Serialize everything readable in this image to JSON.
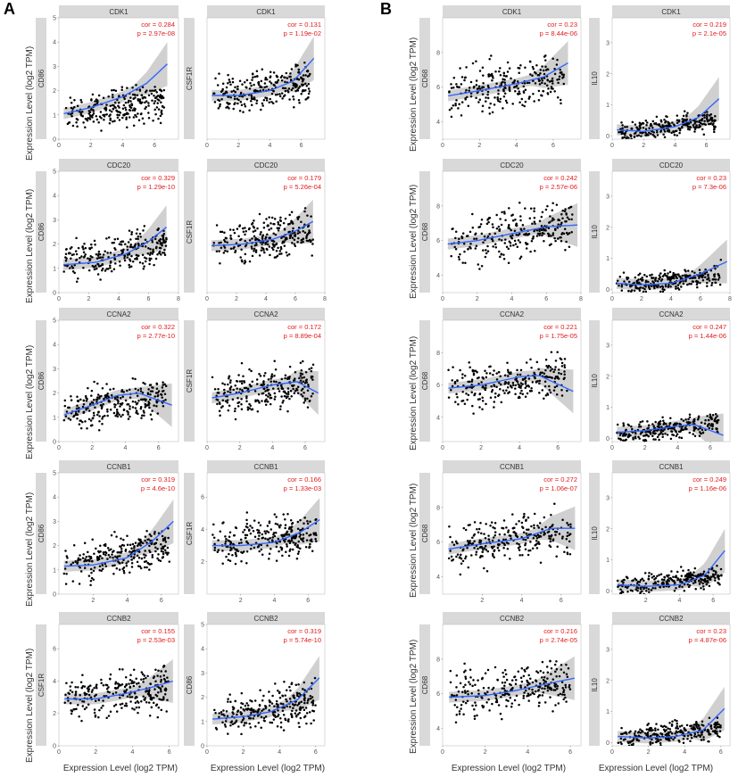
{
  "figure": {
    "labels": [
      "A",
      "B"
    ],
    "y_axis_label": "Expression Level (log2 TPM)",
    "x_axis_label": "Expression Level (log2 TPM)"
  },
  "chart_data": [
    {
      "type": "scatter",
      "panel": "A",
      "row": 1,
      "col": 1,
      "title": "CDK1",
      "ylabel": "CD86",
      "xlim": [
        0,
        7.5
      ],
      "ylim": [
        0,
        5
      ],
      "xticks": [
        0,
        2,
        4,
        6
      ],
      "yticks": [
        0,
        1,
        2,
        3,
        4,
        5
      ],
      "cor": "cor = 0.284",
      "p": "p = 2.97e-08",
      "trend": [
        [
          0.3,
          1.05
        ],
        [
          2,
          1.3
        ],
        [
          4,
          1.75
        ],
        [
          5.5,
          2.3
        ],
        [
          6.8,
          3.1
        ]
      ],
      "spread": 0.55,
      "cloud": [
        [
          0.3,
          1.0
        ],
        [
          6.6,
          1.6
        ]
      ]
    },
    {
      "type": "scatter",
      "panel": "A",
      "row": 1,
      "col": 2,
      "title": "CDK1",
      "ylabel": "CSF1R",
      "xlim": [
        0,
        7.5
      ],
      "ylim": [
        0,
        7.5
      ],
      "xticks": [
        0,
        2,
        4,
        6
      ],
      "yticks": [],
      "cor": "cor = 0.131",
      "p": "p = 1.19e-02",
      "trend": [
        [
          0.3,
          2.7
        ],
        [
          2,
          2.7
        ],
        [
          4,
          3.0
        ],
        [
          5.5,
          3.6
        ],
        [
          6.8,
          5.0
        ]
      ],
      "spread": 0.9,
      "cloud": [
        [
          0.3,
          2.6
        ],
        [
          6.6,
          3.6
        ]
      ]
    },
    {
      "type": "scatter",
      "panel": "A",
      "row": 2,
      "col": 1,
      "title": "CDC20",
      "ylabel": "CD86",
      "xlim": [
        0,
        8
      ],
      "ylim": [
        0,
        5
      ],
      "xticks": [
        0,
        2,
        4,
        6,
        8
      ],
      "yticks": [
        0,
        1,
        2,
        3,
        4,
        5
      ],
      "cor": "cor = 0.329",
      "p": "p = 1.29e-10",
      "trend": [
        [
          0.3,
          1.15
        ],
        [
          2.5,
          1.25
        ],
        [
          4.5,
          1.6
        ],
        [
          6,
          2.1
        ],
        [
          7.2,
          2.7
        ]
      ],
      "spread": 0.6,
      "cloud": [
        [
          0.3,
          1.2
        ],
        [
          7.2,
          2.0
        ]
      ]
    },
    {
      "type": "scatter",
      "panel": "A",
      "row": 2,
      "col": 2,
      "title": "CDC20",
      "ylabel": "CSF1R",
      "xlim": [
        0,
        8
      ],
      "ylim": [
        0,
        7.5
      ],
      "xticks": [
        0,
        2,
        4,
        6,
        8
      ],
      "yticks": [],
      "cor": "cor = 0.179",
      "p": "p = 5.26e-04",
      "trend": [
        [
          0.3,
          2.9
        ],
        [
          2.5,
          3.0
        ],
        [
          4.5,
          3.3
        ],
        [
          6,
          3.8
        ],
        [
          7.2,
          4.4
        ]
      ],
      "spread": 1.0,
      "cloud": [
        [
          0.3,
          2.9
        ],
        [
          7.2,
          3.8
        ]
      ]
    },
    {
      "type": "scatter",
      "panel": "A",
      "row": 3,
      "col": 1,
      "title": "CCNA2",
      "ylabel": "CD86",
      "xlim": [
        0,
        7.2
      ],
      "ylim": [
        0,
        5
      ],
      "xticks": [
        0,
        2,
        4,
        6
      ],
      "yticks": [
        0,
        1,
        2,
        3,
        4,
        5
      ],
      "cor": "cor = 0.322",
      "p": "p = 2.77e-10",
      "trend": [
        [
          0.3,
          1.1
        ],
        [
          2,
          1.5
        ],
        [
          3.5,
          1.9
        ],
        [
          4.8,
          2.0
        ],
        [
          6.8,
          1.5
        ]
      ],
      "spread": 0.6,
      "cloud": [
        [
          0.3,
          1.2
        ],
        [
          6.5,
          1.9
        ]
      ]
    },
    {
      "type": "scatter",
      "panel": "A",
      "row": 3,
      "col": 2,
      "title": "CCNA2",
      "ylabel": "CSF1R",
      "xlim": [
        0,
        7.2
      ],
      "ylim": [
        0,
        7.5
      ],
      "xticks": [
        0,
        2,
        4,
        6
      ],
      "yticks": [],
      "cor": "cor = 0.172",
      "p": "p = 8.89e-04",
      "trend": [
        [
          0.3,
          2.7
        ],
        [
          2,
          3.0
        ],
        [
          4,
          3.5
        ],
        [
          5.5,
          3.7
        ],
        [
          6.8,
          3.0
        ]
      ],
      "spread": 1.0,
      "cloud": [
        [
          0.3,
          2.8
        ],
        [
          6.5,
          3.6
        ]
      ]
    },
    {
      "type": "scatter",
      "panel": "A",
      "row": 4,
      "col": 1,
      "title": "CCNB1",
      "ylabel": "CD86",
      "xlim": [
        0,
        7
      ],
      "ylim": [
        0,
        5
      ],
      "xticks": [
        2,
        4,
        6
      ],
      "yticks": [
        0,
        1,
        2,
        3,
        4,
        5
      ],
      "cor": "cor = 0.319",
      "p": "p = 4.6e-10",
      "trend": [
        [
          0.3,
          1.15
        ],
        [
          2,
          1.2
        ],
        [
          4,
          1.5
        ],
        [
          5.5,
          2.2
        ],
        [
          6.7,
          3.0
        ]
      ],
      "spread": 0.6,
      "cloud": [
        [
          0.3,
          1.2
        ],
        [
          6.5,
          2.0
        ]
      ]
    },
    {
      "type": "scatter",
      "panel": "A",
      "row": 4,
      "col": 2,
      "title": "CCNB1",
      "ylabel": "CSF1R",
      "xlim": [
        0,
        7
      ],
      "ylim": [
        0,
        7.5
      ],
      "xticks": [
        2,
        4,
        6
      ],
      "yticks": [
        2,
        4,
        6
      ],
      "cor": "cor = 0.166",
      "p": "p = 1.33e-03",
      "trend": [
        [
          0.3,
          3.0
        ],
        [
          2,
          3.0
        ],
        [
          4,
          3.2
        ],
        [
          5.5,
          3.8
        ],
        [
          6.7,
          4.6
        ]
      ],
      "spread": 1.0,
      "cloud": [
        [
          0.3,
          3.0
        ],
        [
          6.5,
          3.8
        ]
      ]
    },
    {
      "type": "scatter",
      "panel": "A",
      "row": 5,
      "col": 1,
      "title": "CCNB2",
      "ylabel": "CSF1R",
      "xlim": [
        0,
        6.5
      ],
      "ylim": [
        0,
        7.5
      ],
      "xticks": [
        0,
        2,
        4,
        6
      ],
      "yticks": [
        0,
        2,
        4,
        6
      ],
      "cor": "cor = 0.155",
      "p": "p = 2.53e-03",
      "trend": [
        [
          0.3,
          2.9
        ],
        [
          2,
          2.9
        ],
        [
          3.5,
          3.2
        ],
        [
          5,
          3.6
        ],
        [
          6.2,
          4.0
        ]
      ],
      "spread": 1.0,
      "cloud": [
        [
          0.3,
          2.9
        ],
        [
          6.0,
          3.6
        ]
      ]
    },
    {
      "type": "scatter",
      "panel": "A",
      "row": 5,
      "col": 2,
      "title": "CCNB2",
      "ylabel": "CD86",
      "xlim": [
        0,
        6.5
      ],
      "ylim": [
        0,
        5
      ],
      "xticks": [
        0,
        2,
        4,
        6
      ],
      "yticks": [
        0,
        1,
        2,
        3,
        4,
        5
      ],
      "cor": "cor = 0.319",
      "p": "p = 5.74e-10",
      "trend": [
        [
          0.3,
          1.1
        ],
        [
          2,
          1.2
        ],
        [
          3.5,
          1.4
        ],
        [
          5,
          1.9
        ],
        [
          6.2,
          2.8
        ]
      ],
      "spread": 0.6,
      "cloud": [
        [
          0.3,
          1.1
        ],
        [
          6.0,
          1.9
        ]
      ]
    },
    {
      "type": "scatter",
      "panel": "B",
      "row": 1,
      "col": 1,
      "title": "CDK1",
      "ylabel": "CD68",
      "xlim": [
        0,
        7.5
      ],
      "ylim": [
        3,
        10
      ],
      "xticks": [
        0,
        2,
        4,
        6
      ],
      "yticks": [
        4,
        6,
        8
      ],
      "cor": "cor = 0.23",
      "p": "p = 8.44e-06",
      "trend": [
        [
          0.3,
          5.5
        ],
        [
          2,
          5.8
        ],
        [
          4,
          6.2
        ],
        [
          5.5,
          6.6
        ],
        [
          6.8,
          7.4
        ]
      ],
      "spread": 1.0,
      "cloud": [
        [
          0.3,
          5.6
        ],
        [
          6.6,
          6.6
        ]
      ]
    },
    {
      "type": "scatter",
      "panel": "B",
      "row": 1,
      "col": 2,
      "title": "CDK1",
      "ylabel": "IL10",
      "xlim": [
        0,
        7.5
      ],
      "ylim": [
        -0.1,
        3.8
      ],
      "xticks": [
        0,
        2,
        4,
        6
      ],
      "yticks": [
        0,
        1,
        2,
        3
      ],
      "cor": "cor = 0.219",
      "p": "p = 2.1e-05",
      "trend": [
        [
          0.3,
          0.2
        ],
        [
          2,
          0.15
        ],
        [
          4,
          0.3
        ],
        [
          5.5,
          0.6
        ],
        [
          6.8,
          1.2
        ]
      ],
      "spread": 0.25,
      "cloud": [
        [
          0.3,
          0.1
        ],
        [
          6.6,
          0.5
        ]
      ]
    },
    {
      "type": "scatter",
      "panel": "B",
      "row": 2,
      "col": 1,
      "title": "CDC20",
      "ylabel": "CD68",
      "xlim": [
        0,
        8
      ],
      "ylim": [
        3,
        10
      ],
      "xticks": [
        0,
        2,
        4,
        6,
        8
      ],
      "yticks": [
        4,
        6,
        8
      ],
      "cor": "cor = 0.242",
      "p": "p = 2.57e-06",
      "trend": [
        [
          0.3,
          5.8
        ],
        [
          2,
          6.0
        ],
        [
          4,
          6.4
        ],
        [
          6,
          6.8
        ],
        [
          7.8,
          6.9
        ]
      ],
      "spread": 1.0,
      "cloud": [
        [
          0.3,
          5.8
        ],
        [
          7.5,
          6.9
        ]
      ]
    },
    {
      "type": "scatter",
      "panel": "B",
      "row": 2,
      "col": 2,
      "title": "CDC20",
      "ylabel": "IL10",
      "xlim": [
        0,
        8
      ],
      "ylim": [
        -0.1,
        3.8
      ],
      "xticks": [
        0,
        2,
        4,
        6,
        8
      ],
      "yticks": [
        0,
        1,
        2,
        3
      ],
      "cor": "cor = 0.23",
      "p": "p = 7.3e-06",
      "trend": [
        [
          0.3,
          0.2
        ],
        [
          2,
          0.15
        ],
        [
          4,
          0.2
        ],
        [
          6,
          0.5
        ],
        [
          7.8,
          0.9
        ]
      ],
      "spread": 0.25,
      "cloud": [
        [
          0.3,
          0.1
        ],
        [
          7.5,
          0.5
        ]
      ]
    },
    {
      "type": "scatter",
      "panel": "B",
      "row": 3,
      "col": 1,
      "title": "CCNA2",
      "ylabel": "CD68",
      "xlim": [
        0,
        7.2
      ],
      "ylim": [
        2.5,
        10
      ],
      "xticks": [
        0,
        2,
        4,
        6
      ],
      "yticks": [
        4,
        6,
        8
      ],
      "cor": "cor = 0.221",
      "p": "p = 1.75e-05",
      "trend": [
        [
          0.3,
          5.8
        ],
        [
          2,
          6.0
        ],
        [
          4,
          6.5
        ],
        [
          5,
          6.6
        ],
        [
          6.8,
          5.6
        ]
      ],
      "spread": 1.0,
      "cloud": [
        [
          0.3,
          5.8
        ],
        [
          6.5,
          6.6
        ]
      ]
    },
    {
      "type": "scatter",
      "panel": "B",
      "row": 3,
      "col": 2,
      "title": "CCNA2",
      "ylabel": "IL10",
      "xlim": [
        0,
        7.2
      ],
      "ylim": [
        -0.1,
        3.8
      ],
      "xticks": [
        0,
        2,
        4,
        6
      ],
      "yticks": [
        0,
        1,
        2,
        3
      ],
      "cor": "cor = 0.247",
      "p": "p = 1.44e-06",
      "trend": [
        [
          0.3,
          0.2
        ],
        [
          2,
          0.25
        ],
        [
          4,
          0.4
        ],
        [
          5,
          0.45
        ],
        [
          6.8,
          0.1
        ]
      ],
      "spread": 0.25,
      "cloud": [
        [
          0.3,
          0.1
        ],
        [
          6.5,
          0.5
        ]
      ]
    },
    {
      "type": "scatter",
      "panel": "B",
      "row": 4,
      "col": 1,
      "title": "CCNB1",
      "ylabel": "CD68",
      "xlim": [
        0,
        7
      ],
      "ylim": [
        3,
        10
      ],
      "xticks": [
        2,
        4,
        6
      ],
      "yticks": [
        4,
        6,
        8
      ],
      "cor": "cor = 0.272",
      "p": "p = 1.06e-07",
      "trend": [
        [
          0.3,
          5.6
        ],
        [
          2,
          5.9
        ],
        [
          4,
          6.2
        ],
        [
          5.5,
          6.8
        ],
        [
          6.7,
          6.8
        ]
      ],
      "spread": 1.0,
      "cloud": [
        [
          0.3,
          5.6
        ],
        [
          6.5,
          6.8
        ]
      ]
    },
    {
      "type": "scatter",
      "panel": "B",
      "row": 4,
      "col": 2,
      "title": "CCNB1",
      "ylabel": "IL10",
      "xlim": [
        0,
        7
      ],
      "ylim": [
        -0.1,
        3.8
      ],
      "xticks": [
        2,
        4,
        6
      ],
      "yticks": [
        0,
        1,
        2,
        3
      ],
      "cor": "cor = 0.249",
      "p": "p = 1.16e-06",
      "trend": [
        [
          0.3,
          0.2
        ],
        [
          2,
          0.15
        ],
        [
          4,
          0.2
        ],
        [
          5.5,
          0.5
        ],
        [
          6.7,
          1.3
        ]
      ],
      "spread": 0.25,
      "cloud": [
        [
          0.3,
          0.1
        ],
        [
          6.5,
          0.5
        ]
      ]
    },
    {
      "type": "scatter",
      "panel": "B",
      "row": 5,
      "col": 1,
      "title": "CCNB2",
      "ylabel": "CD68",
      "xlim": [
        0,
        6.5
      ],
      "ylim": [
        3,
        10
      ],
      "xticks": [
        0,
        2,
        4,
        6
      ],
      "yticks": [
        4,
        6,
        8
      ],
      "cor": "cor = 0.216",
      "p": "p = 2.74e-05",
      "trend": [
        [
          0.3,
          5.8
        ],
        [
          2,
          5.9
        ],
        [
          3.5,
          6.2
        ],
        [
          5,
          6.6
        ],
        [
          6.2,
          6.9
        ]
      ],
      "spread": 1.0,
      "cloud": [
        [
          0.3,
          5.8
        ],
        [
          6.0,
          6.7
        ]
      ]
    },
    {
      "type": "scatter",
      "panel": "B",
      "row": 5,
      "col": 2,
      "title": "CCNB2",
      "ylabel": "IL10",
      "xlim": [
        0,
        6.5
      ],
      "ylim": [
        -0.1,
        3.8
      ],
      "xticks": [
        0,
        2,
        4,
        6
      ],
      "yticks": [
        0,
        1,
        2,
        3
      ],
      "cor": "cor = 0.23",
      "p": "p = 4.87e-06",
      "trend": [
        [
          0.3,
          0.2
        ],
        [
          2,
          0.15
        ],
        [
          3.5,
          0.2
        ],
        [
          5,
          0.4
        ],
        [
          6.2,
          1.1
        ]
      ],
      "spread": 0.25,
      "cloud": [
        [
          0.3,
          0.1
        ],
        [
          6.0,
          0.5
        ]
      ]
    }
  ]
}
